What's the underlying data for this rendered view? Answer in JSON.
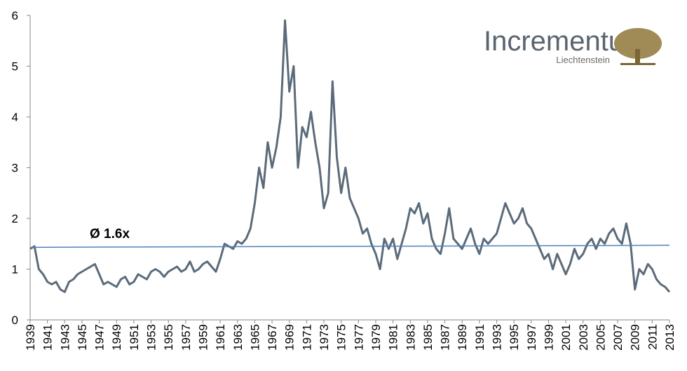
{
  "chart_data": {
    "type": "line",
    "logo_name": "Incrementum",
    "logo_sub": "Liechtenstein",
    "annotation": "Ø 1.6x",
    "x": [
      1939,
      1939.5,
      1940,
      1940.5,
      1941,
      1941.5,
      1942,
      1942.5,
      1943,
      1943.5,
      1944,
      1944.5,
      1945,
      1945.5,
      1946,
      1946.5,
      1947,
      1947.5,
      1948,
      1948.5,
      1949,
      1949.5,
      1950,
      1950.5,
      1951,
      1951.5,
      1952,
      1952.5,
      1953,
      1953.5,
      1954,
      1954.5,
      1955,
      1955.5,
      1956,
      1956.5,
      1957,
      1957.5,
      1958,
      1958.5,
      1959,
      1959.5,
      1960,
      1960.5,
      1961,
      1961.5,
      1962,
      1962.5,
      1963,
      1963.5,
      1964,
      1964.5,
      1965,
      1965.5,
      1966,
      1966.5,
      1967,
      1967.5,
      1968,
      1968.5,
      1969,
      1969.5,
      1970,
      1970.5,
      1971,
      1971.5,
      1972,
      1972.5,
      1973,
      1973.5,
      1974,
      1974.5,
      1975,
      1975.5,
      1976,
      1976.5,
      1977,
      1977.5,
      1978,
      1978.5,
      1979,
      1979.5,
      1980,
      1980.5,
      1981,
      1981.5,
      1982,
      1982.5,
      1983,
      1983.5,
      1984,
      1984.5,
      1985,
      1985.5,
      1986,
      1986.5,
      1987,
      1987.5,
      1988,
      1988.5,
      1989,
      1989.5,
      1990,
      1990.5,
      1991,
      1991.5,
      1992,
      1992.5,
      1993,
      1993.5,
      1994,
      1994.5,
      1995,
      1995.5,
      1996,
      1996.5,
      1997,
      1997.5,
      1998,
      1998.5,
      1999,
      1999.5,
      2000,
      2000.5,
      2001,
      2001.5,
      2002,
      2002.5,
      2003,
      2003.5,
      2004,
      2004.5,
      2005,
      2005.5,
      2006,
      2006.5,
      2007,
      2007.5,
      2008,
      2008.5,
      2009,
      2009.5,
      2010,
      2010.5,
      2011,
      2011.5,
      2012,
      2012.5,
      2013
    ],
    "series": [
      {
        "color": "#5b6b7a",
        "values": [
          1.4,
          1.45,
          1.0,
          0.9,
          0.75,
          0.7,
          0.75,
          0.6,
          0.55,
          0.75,
          0.8,
          0.9,
          0.95,
          1.0,
          1.05,
          1.1,
          0.9,
          0.7,
          0.75,
          0.7,
          0.65,
          0.8,
          0.85,
          0.7,
          0.75,
          0.9,
          0.85,
          0.8,
          0.95,
          1.0,
          0.95,
          0.85,
          0.95,
          1.0,
          1.05,
          0.95,
          1.0,
          1.15,
          0.95,
          1.0,
          1.1,
          1.15,
          1.05,
          0.95,
          1.2,
          1.5,
          1.45,
          1.4,
          1.55,
          1.5,
          1.6,
          1.8,
          2.3,
          3.0,
          2.6,
          3.5,
          3.0,
          3.4,
          4.0,
          5.9,
          4.5,
          5.0,
          3.0,
          3.8,
          3.6,
          4.1,
          3.5,
          3.0,
          2.2,
          2.5,
          4.7,
          3.2,
          2.5,
          3.0,
          2.4,
          2.2,
          2.0,
          1.7,
          1.8,
          1.5,
          1.3,
          1.0,
          1.6,
          1.4,
          1.6,
          1.2,
          1.5,
          1.8,
          2.2,
          2.1,
          2.3,
          1.9,
          2.1,
          1.6,
          1.4,
          1.3,
          1.7,
          2.2,
          1.6,
          1.5,
          1.4,
          1.6,
          1.8,
          1.5,
          1.3,
          1.6,
          1.5,
          1.6,
          1.7,
          2.0,
          2.3,
          2.1,
          1.9,
          2.0,
          2.2,
          1.9,
          1.8,
          1.6,
          1.4,
          1.2,
          1.3,
          1.0,
          1.3,
          1.1,
          0.9,
          1.1,
          1.4,
          1.2,
          1.3,
          1.5,
          1.6,
          1.4,
          1.6,
          1.5,
          1.7,
          1.8,
          1.6,
          1.5,
          1.9,
          1.5,
          0.6,
          1.0,
          0.9,
          1.1,
          1.0,
          0.8,
          0.7,
          0.65,
          0.55
        ]
      },
      {
        "color": "#4f81bd",
        "x": [
          1939,
          2013
        ],
        "values": [
          1.43,
          1.47
        ]
      }
    ],
    "xlim": [
      1939,
      2013
    ],
    "xticks": [
      1939,
      1941,
      1943,
      1945,
      1947,
      1949,
      1951,
      1953,
      1955,
      1957,
      1959,
      1961,
      1963,
      1965,
      1967,
      1969,
      1971,
      1973,
      1975,
      1977,
      1979,
      1981,
      1983,
      1985,
      1987,
      1989,
      1991,
      1993,
      1995,
      1997,
      1999,
      2001,
      2003,
      2005,
      2007,
      2009,
      2011,
      2013
    ],
    "ylim": [
      0,
      6
    ],
    "yticks": [
      0,
      1,
      2,
      3,
      4,
      5,
      6
    ]
  }
}
